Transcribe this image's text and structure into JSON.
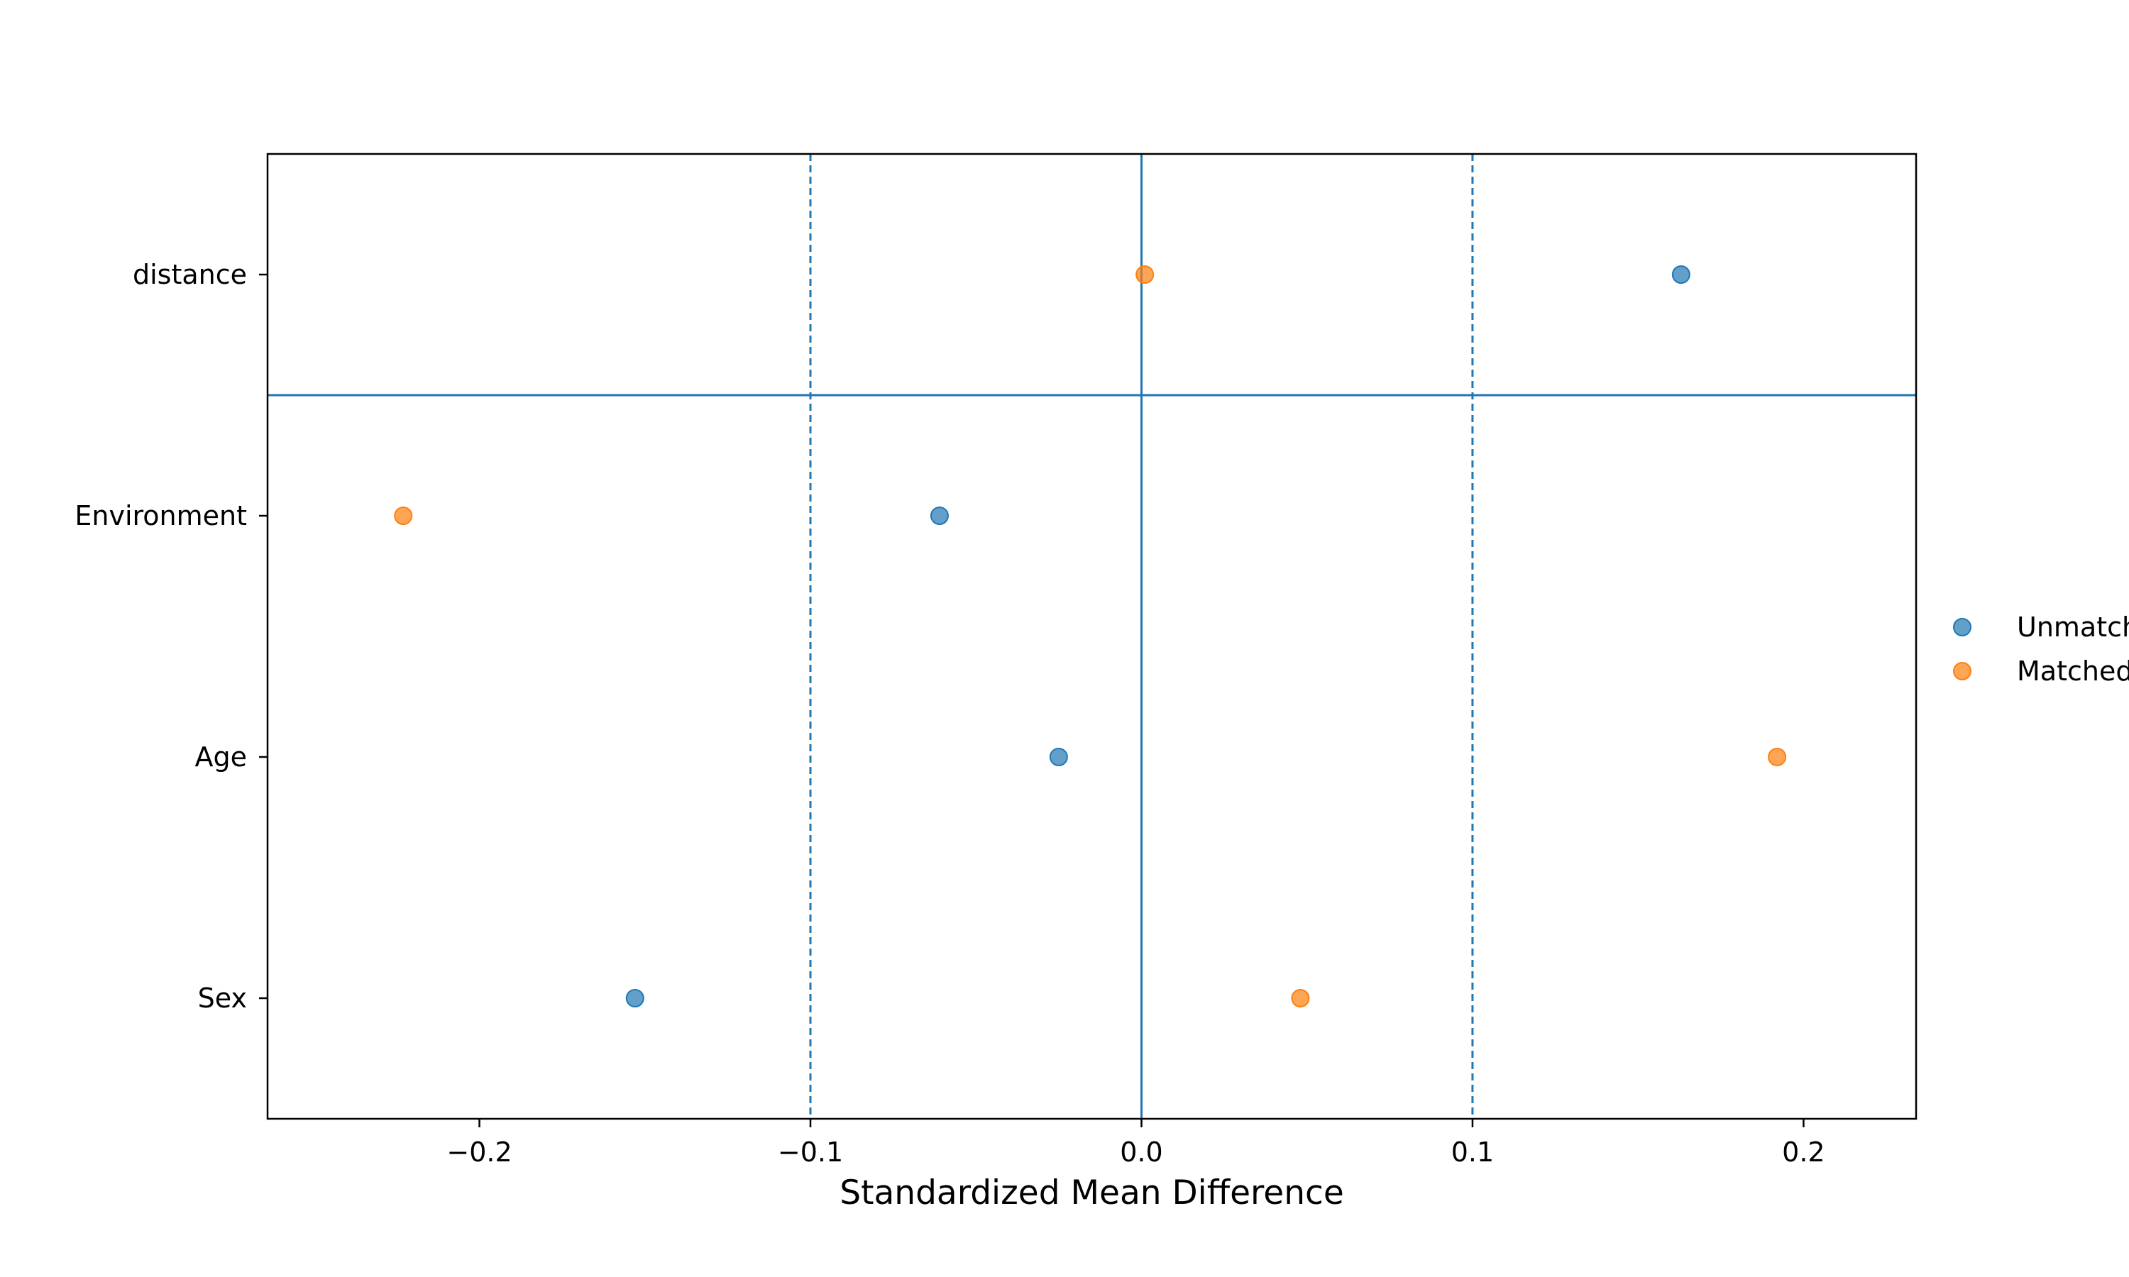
{
  "chart_data": {
    "type": "scatter",
    "title": "",
    "xlabel": "Standardized Mean Difference",
    "ylabel": "",
    "xlim": [
      -0.264,
      0.234
    ],
    "x_ticks": [
      -0.2,
      -0.1,
      0.0,
      0.1,
      0.2
    ],
    "x_tick_labels": [
      "−0.2",
      "−0.1",
      "0.0",
      "0.1",
      "0.2"
    ],
    "categories": [
      "distance",
      "Environment",
      "Age",
      "Sex"
    ],
    "series": [
      {
        "name": "Unmatched",
        "color": "#1f77b4",
        "values": [
          0.163,
          -0.061,
          -0.025,
          -0.153
        ]
      },
      {
        "name": "Matched",
        "color": "#ff7f0e",
        "values": [
          0.001,
          -0.223,
          0.192,
          0.048
        ]
      }
    ],
    "reference_lines": {
      "solid_x": [
        0.0
      ],
      "dashed_x": [
        -0.1,
        0.1
      ],
      "separator_between_categories": [
        "distance",
        "Environment"
      ]
    },
    "grid": false,
    "legend_position": "right"
  }
}
